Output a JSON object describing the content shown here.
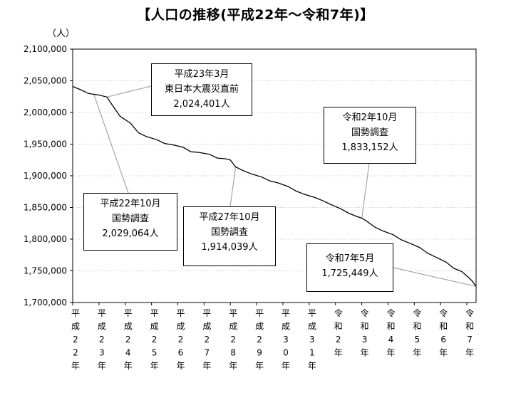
{
  "chart_data": {
    "type": "line",
    "title": "【人口の推移(平成22年～令和7年)】",
    "ylabel": "（人）",
    "ylim": [
      1700000,
      2100000
    ],
    "y_ticks": [
      "2,100,000",
      "2,050,000",
      "2,000,000",
      "1,950,000",
      "1,900,000",
      "1,850,000",
      "1,800,000",
      "1,750,000",
      "1,700,000"
    ],
    "categories": [
      "平成22年",
      "平成23年",
      "平成24年",
      "平成25年",
      "平成26年",
      "平成27年",
      "平成28年",
      "平成29年",
      "平成30年",
      "平成31年",
      "令和2年",
      "令和3年",
      "令和4年",
      "令和5年",
      "令和6年",
      "令和7年"
    ],
    "x_label_chars": [
      [
        "平",
        "成",
        "2",
        "2",
        "年"
      ],
      [
        "平",
        "成",
        "2",
        "3",
        "年"
      ],
      [
        "平",
        "成",
        "2",
        "4",
        "年"
      ],
      [
        "平",
        "成",
        "2",
        "5",
        "年"
      ],
      [
        "平",
        "成",
        "2",
        "6",
        "年"
      ],
      [
        "平",
        "成",
        "2",
        "7",
        "年"
      ],
      [
        "平",
        "成",
        "2",
        "8",
        "年"
      ],
      [
        "平",
        "成",
        "2",
        "9",
        "年"
      ],
      [
        "平",
        "成",
        "3",
        "0",
        "年"
      ],
      [
        "平",
        "成",
        "3",
        "1",
        "年"
      ],
      [
        "令",
        "和",
        "2",
        "年"
      ],
      [
        "令",
        "和",
        "3",
        "年"
      ],
      [
        "令",
        "和",
        "4",
        "年"
      ],
      [
        "令",
        "和",
        "5",
        "年"
      ],
      [
        "令",
        "和",
        "6",
        "年"
      ],
      [
        "令",
        "和",
        "7",
        "年"
      ]
    ],
    "series": [
      {
        "values": [
          [
            0.0,
            2041000
          ],
          [
            0.3,
            2036000
          ],
          [
            0.6,
            2030000
          ],
          [
            1.0,
            2027500
          ],
          [
            1.3,
            2024401
          ],
          [
            1.5,
            2012000
          ],
          [
            1.8,
            1994000
          ],
          [
            2.2,
            1983000
          ],
          [
            2.5,
            1968000
          ],
          [
            2.8,
            1962000
          ],
          [
            3.2,
            1957000
          ],
          [
            3.5,
            1951000
          ],
          [
            3.8,
            1949000
          ],
          [
            4.2,
            1945000
          ],
          [
            4.5,
            1938000
          ],
          [
            4.8,
            1937000
          ],
          [
            5.2,
            1934000
          ],
          [
            5.5,
            1928000
          ],
          [
            5.8,
            1927000
          ],
          [
            6.0,
            1925000
          ],
          [
            6.2,
            1914039
          ],
          [
            6.5,
            1908000
          ],
          [
            6.8,
            1903000
          ],
          [
            7.2,
            1898000
          ],
          [
            7.5,
            1892000
          ],
          [
            7.8,
            1889000
          ],
          [
            8.2,
            1883000
          ],
          [
            8.5,
            1876000
          ],
          [
            8.8,
            1871000
          ],
          [
            9.2,
            1866000
          ],
          [
            9.5,
            1861000
          ],
          [
            9.8,
            1855000
          ],
          [
            10.2,
            1848000
          ],
          [
            10.5,
            1841000
          ],
          [
            10.8,
            1836000
          ],
          [
            11.0,
            1833152
          ],
          [
            11.2,
            1828000
          ],
          [
            11.5,
            1819000
          ],
          [
            11.8,
            1813000
          ],
          [
            12.2,
            1807000
          ],
          [
            12.5,
            1799000
          ],
          [
            12.8,
            1794000
          ],
          [
            13.2,
            1787000
          ],
          [
            13.5,
            1778000
          ],
          [
            13.8,
            1772000
          ],
          [
            14.2,
            1764000
          ],
          [
            14.5,
            1754000
          ],
          [
            14.8,
            1749000
          ],
          [
            15.0,
            1742000
          ],
          [
            15.2,
            1734000
          ],
          [
            15.35,
            1725449
          ]
        ]
      }
    ],
    "annotations": [
      {
        "id": "h22",
        "lines": [
          "平成22年10月",
          "国勢調査",
          "2,029,064人"
        ],
        "x": 0.8,
        "y": 2029064
      },
      {
        "id": "h23",
        "lines": [
          "平成23年3月",
          "東日本大震災直前",
          "2,024,401人"
        ],
        "x": 1.3,
        "y": 2024401
      },
      {
        "id": "h27",
        "lines": [
          "平成27年10月",
          "国勢調査",
          "1,914,039人"
        ],
        "x": 6.2,
        "y": 1914039
      },
      {
        "id": "r2",
        "lines": [
          "令和2年10月",
          "国勢調査",
          "1,833,152人"
        ],
        "x": 11.0,
        "y": 1833152
      },
      {
        "id": "r7",
        "lines": [
          "令和7年5月",
          "1,725,449人"
        ],
        "x": 15.35,
        "y": 1725449
      }
    ],
    "grid": "dotted horizontal",
    "legend": "none"
  }
}
